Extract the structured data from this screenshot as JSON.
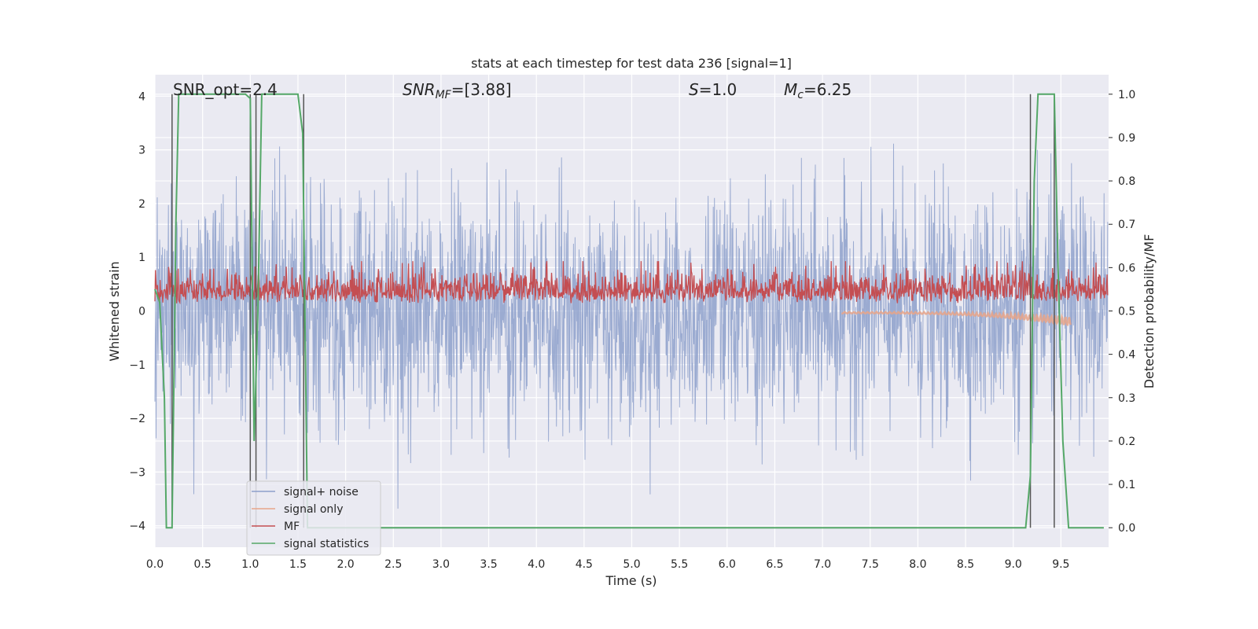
{
  "chart_data": {
    "type": "line",
    "title": "stats at each timestep for test data 236 [signal=1]",
    "xlabel": "Time (s)",
    "ylabel_left": "Whitened strain",
    "ylabel_right": "Detection probability/MF",
    "xlim": [
      0.0,
      10.0
    ],
    "ylim_left": [
      -4.4,
      4.4
    ],
    "ylim_right": [
      -0.045,
      1.045
    ],
    "x_ticks": [
      "0.0",
      "0.5",
      "1.0",
      "1.5",
      "2.0",
      "2.5",
      "3.0",
      "3.5",
      "4.0",
      "4.5",
      "5.0",
      "5.5",
      "6.0",
      "6.5",
      "7.0",
      "7.5",
      "8.0",
      "8.5",
      "9.0",
      "9.5"
    ],
    "y_ticks_left": [
      "−4",
      "−3",
      "−2",
      "−1",
      "0",
      "1",
      "2",
      "3",
      "4"
    ],
    "y_ticks_right": [
      "0.0",
      "0.1",
      "0.2",
      "0.3",
      "0.4",
      "0.5",
      "0.6",
      "0.7",
      "0.8",
      "0.9",
      "1.0"
    ],
    "grid": true,
    "legend_position": "lower-left",
    "annotations": {
      "snr_opt": "SNR_opt=2.4",
      "snr_mf_label": "SNR",
      "snr_mf_sub": "MF",
      "snr_mf_value": "=[3.88]",
      "s_label": "S",
      "s_value": "=1.0",
      "mc_label": "M",
      "mc_sub": "c",
      "mc_value": "=6.25"
    },
    "series": [
      {
        "name": "signal+ noise",
        "color": "#8da0cb",
        "note_range": [
          -3.9,
          4.0
        ]
      },
      {
        "name": "signal only",
        "color": "#e8a58a"
      },
      {
        "name": "MF",
        "color": "#c44e52"
      },
      {
        "name": "signal statistics",
        "color": "#55a868",
        "x": [
          0.0,
          0.05,
          0.1,
          0.12,
          0.18,
          0.22,
          0.25,
          0.3,
          0.95,
          1.0,
          1.04,
          1.08,
          1.12,
          1.15,
          1.5,
          1.55,
          1.6,
          1.65,
          9.13,
          9.18,
          9.22,
          9.26,
          9.43,
          9.47,
          9.52,
          9.58,
          9.95
        ],
        "values": [
          0.55,
          0.52,
          0.3,
          0.0,
          0.0,
          0.7,
          1.0,
          1.0,
          1.0,
          0.99,
          0.2,
          0.5,
          1.0,
          1.0,
          1.0,
          0.91,
          0.0,
          0.0,
          0.0,
          0.12,
          0.8,
          1.0,
          1.0,
          0.6,
          0.2,
          0.0,
          0.0
        ]
      }
    ],
    "vertical_lines_x": [
      0.18,
      1.0,
      1.06,
      1.56,
      9.18,
      9.43
    ]
  }
}
